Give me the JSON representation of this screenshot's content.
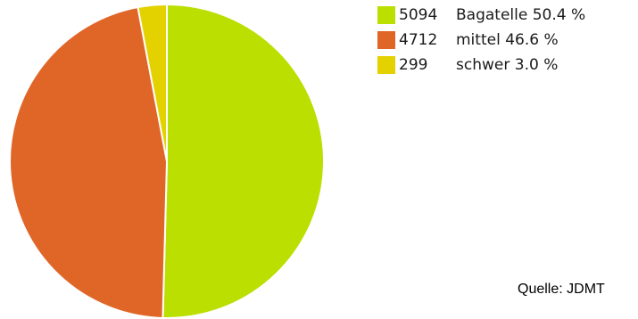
{
  "chart_data": {
    "type": "pie",
    "slices": [
      {
        "value": 5094,
        "label": "Bagatelle",
        "percent_label": "50.4 %",
        "color": "#bbdf00"
      },
      {
        "value": 4712,
        "label": "mittel",
        "percent_label": "46.6 %",
        "color": "#e06628"
      },
      {
        "value": 299,
        "label": "schwer",
        "percent_label": "3.0 %",
        "color": "#e3d200"
      }
    ],
    "legend_placement": "top-right",
    "start_angle": "12 o'clock, clockwise"
  },
  "source_note": "Quelle: JDMT"
}
